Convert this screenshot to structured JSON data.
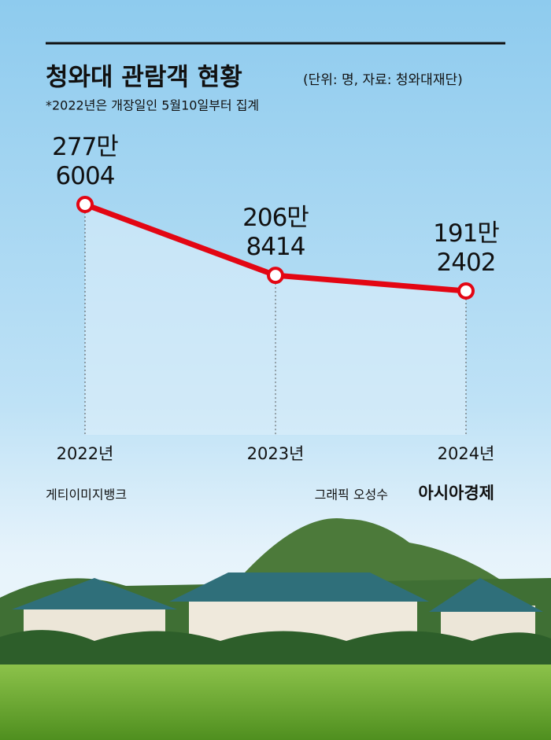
{
  "chart_data": {
    "type": "line",
    "title": "청와대 관람객 현황",
    "subtitle": "(단위: 명, 자료: 청와대재단)",
    "note": "*2022년은 개장일인 5월10일부터 집계",
    "categories": [
      "2022년",
      "2023년",
      "2024년"
    ],
    "values": [
      2776004,
      2068414,
      1912402
    ],
    "value_labels": [
      "277만 6004",
      "206만 8414",
      "191만 2402"
    ],
    "color": "#e30613",
    "photo_credit": "게티이미지뱅크",
    "graphic_credit": "그래픽 오성수",
    "publisher": "아시아경제"
  }
}
